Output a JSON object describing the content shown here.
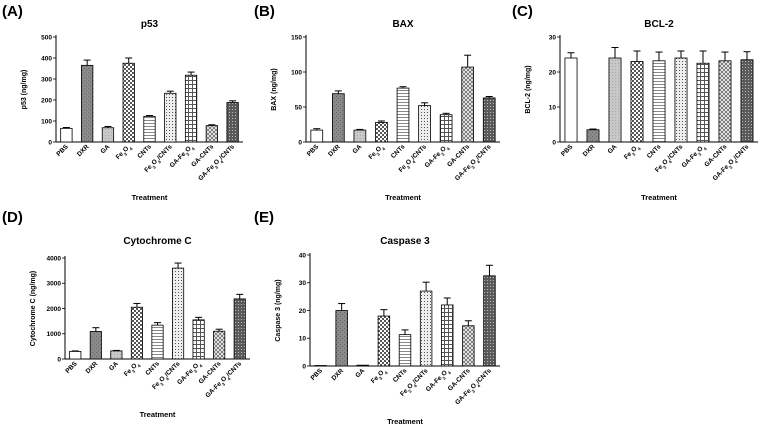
{
  "patterns": [
    "white",
    "gray",
    "lightgray",
    "checker",
    "lines",
    "dots",
    "grid",
    "diamond",
    "dense",
    "cross"
  ],
  "chart_data": [
    {
      "type": "bar",
      "panel": "(A)",
      "title": "p53",
      "ylabel": "p53 (ng/mg)",
      "xlabel": "Treatment",
      "ylim": [
        0,
        500
      ],
      "yticks": [
        0,
        100,
        200,
        300,
        400,
        500
      ],
      "categories": [
        "PBS",
        "DXR",
        "GA",
        "Fe3O4",
        "CNTs",
        "Fe3O4/CNTs",
        "GA-Fe3O4",
        "GA-CNTs",
        "GA-Fe3O4/CNTs"
      ],
      "category_labels": [
        [
          {
            "t": "PBS"
          }
        ],
        [
          {
            "t": "DXR"
          }
        ],
        [
          {
            "t": "GA"
          }
        ],
        [
          {
            "t": "Fe"
          },
          {
            "t": "3",
            "sub": true
          },
          {
            "t": "O"
          },
          {
            "t": "4",
            "sub": true
          }
        ],
        [
          {
            "t": "CNTs"
          }
        ],
        [
          {
            "t": "Fe"
          },
          {
            "t": "3",
            "sub": true
          },
          {
            "t": "O"
          },
          {
            "t": "4",
            "sub": true
          },
          {
            "t": "/CNTs"
          }
        ],
        [
          {
            "t": "GA-Fe"
          },
          {
            "t": "3",
            "sub": true
          },
          {
            "t": "O"
          },
          {
            "t": "4",
            "sub": true
          }
        ],
        [
          {
            "t": "GA-CNTs"
          }
        ],
        [
          {
            "t": "GA-Fe"
          },
          {
            "t": "3",
            "sub": true
          },
          {
            "t": "O"
          },
          {
            "t": "4",
            "sub": true
          },
          {
            "t": "/CNTs"
          }
        ]
      ],
      "values": [
        65,
        365,
        68,
        375,
        122,
        232,
        318,
        78,
        188
      ],
      "errors": [
        4,
        25,
        6,
        25,
        4,
        10,
        15,
        4,
        8
      ]
    },
    {
      "type": "bar",
      "panel": "(B)",
      "title": "BAX",
      "ylabel": "BAX (ng/mg)",
      "xlabel": "Treatment",
      "ylim": [
        0,
        150
      ],
      "yticks": [
        0,
        50,
        100,
        150
      ],
      "categories": [
        "PBS",
        "DXR",
        "GA",
        "Fe3O4",
        "CNTs",
        "Fe3O4/CNTs",
        "GA-Fe3O4",
        "GA-CNTs",
        "GA-Fe3O4/CNTs"
      ],
      "category_labels": [
        [
          {
            "t": "PBS"
          }
        ],
        [
          {
            "t": "DXR"
          }
        ],
        [
          {
            "t": "GA"
          }
        ],
        [
          {
            "t": "Fe"
          },
          {
            "t": "3",
            "sub": true
          },
          {
            "t": "O"
          },
          {
            "t": "4",
            "sub": true
          }
        ],
        [
          {
            "t": "CNTs"
          }
        ],
        [
          {
            "t": "Fe"
          },
          {
            "t": "3",
            "sub": true
          },
          {
            "t": "O"
          },
          {
            "t": "4",
            "sub": true
          },
          {
            "t": "/CNTs"
          }
        ],
        [
          {
            "t": "GA-Fe"
          },
          {
            "t": "3",
            "sub": true
          },
          {
            "t": "O"
          },
          {
            "t": "4",
            "sub": true
          }
        ],
        [
          {
            "t": "GA-CNTs"
          }
        ],
        [
          {
            "t": "GA-Fe"
          },
          {
            "t": "3",
            "sub": true
          },
          {
            "t": "O"
          },
          {
            "t": "4",
            "sub": true
          },
          {
            "t": "/CNTs"
          }
        ]
      ],
      "values": [
        17,
        69,
        17,
        28,
        77,
        52,
        39,
        107,
        63
      ],
      "errors": [
        2,
        4,
        1,
        2,
        2,
        4,
        2,
        17,
        2
      ]
    },
    {
      "type": "bar",
      "panel": "(C)",
      "title": "BCL-2",
      "ylabel": "BCL-2 (ng/mg)",
      "xlabel": "Treatment",
      "ylim": [
        0,
        30
      ],
      "yticks": [
        0,
        10,
        20,
        30
      ],
      "categories": [
        "PBS",
        "DXR",
        "GA",
        "Fe3O4",
        "CNTs",
        "Fe3O4/CNTs",
        "GA-Fe3O4",
        "GA-CNTs",
        "GA-Fe3O4/CNTs"
      ],
      "category_labels": [
        [
          {
            "t": "PBS"
          }
        ],
        [
          {
            "t": "DXR"
          }
        ],
        [
          {
            "t": "GA"
          }
        ],
        [
          {
            "t": "Fe"
          },
          {
            "t": "3",
            "sub": true
          },
          {
            "t": "O"
          },
          {
            "t": "4",
            "sub": true
          }
        ],
        [
          {
            "t": "CNTs"
          }
        ],
        [
          {
            "t": "Fe"
          },
          {
            "t": "3",
            "sub": true
          },
          {
            "t": "O"
          },
          {
            "t": "4",
            "sub": true
          },
          {
            "t": "/CNTs"
          }
        ],
        [
          {
            "t": "GA-Fe"
          },
          {
            "t": "3",
            "sub": true
          },
          {
            "t": "O"
          },
          {
            "t": "4",
            "sub": true
          }
        ],
        [
          {
            "t": "GA-CNTs"
          }
        ],
        [
          {
            "t": "GA-Fe"
          },
          {
            "t": "3",
            "sub": true
          },
          {
            "t": "O"
          },
          {
            "t": "4",
            "sub": true
          },
          {
            "t": "/CNTs"
          }
        ]
      ],
      "values": [
        24,
        3.5,
        24,
        23,
        23.2,
        24,
        22.5,
        23.2,
        23.5
      ],
      "errors": [
        1.5,
        0.2,
        3,
        3,
        2.5,
        2,
        3.5,
        2.5,
        2.3
      ]
    },
    {
      "type": "bar",
      "panel": "(D)",
      "title": "Cytochrome C",
      "ylabel": "Cytochrome C (ng/mg)",
      "xlabel": "Treatment",
      "ylim": [
        0,
        4000
      ],
      "yticks": [
        0,
        1000,
        2000,
        3000,
        4000
      ],
      "categories": [
        "PBS",
        "DXR",
        "GA",
        "Fe3O4",
        "CNTs",
        "Fe3O4/CNTs",
        "GA-Fe3O4",
        "GA-CNTs",
        "GA-Fe3O4/CNTs"
      ],
      "category_labels": [
        [
          {
            "t": "PBS"
          }
        ],
        [
          {
            "t": "DXR"
          }
        ],
        [
          {
            "t": "GA"
          }
        ],
        [
          {
            "t": "Fe"
          },
          {
            "t": "3",
            "sub": true
          },
          {
            "t": "O"
          },
          {
            "t": "4",
            "sub": true
          }
        ],
        [
          {
            "t": "CNTs"
          }
        ],
        [
          {
            "t": "Fe"
          },
          {
            "t": "3",
            "sub": true
          },
          {
            "t": "O"
          },
          {
            "t": "4",
            "sub": true
          },
          {
            "t": "/CNTs"
          }
        ],
        [
          {
            "t": "GA-Fe"
          },
          {
            "t": "3",
            "sub": true
          },
          {
            "t": "O"
          },
          {
            "t": "4",
            "sub": true
          }
        ],
        [
          {
            "t": "GA-CNTs"
          }
        ],
        [
          {
            "t": "GA-Fe"
          },
          {
            "t": "3",
            "sub": true
          },
          {
            "t": "O"
          },
          {
            "t": "4",
            "sub": true
          },
          {
            "t": "/CNTs"
          }
        ]
      ],
      "values": [
        300,
        1090,
        320,
        2050,
        1340,
        3600,
        1550,
        1100,
        2380
      ],
      "errors": [
        20,
        150,
        20,
        150,
        100,
        200,
        100,
        80,
        180
      ]
    },
    {
      "type": "bar",
      "panel": "(E)",
      "title": "Caspase 3",
      "ylabel": "Caspase 3 (ng/mg)",
      "xlabel": "Treatment",
      "ylim": [
        0,
        40
      ],
      "yticks": [
        0,
        10,
        20,
        30,
        40
      ],
      "categories": [
        "PBS",
        "DXR",
        "GA",
        "Fe3O4",
        "CNTs",
        "Fe3O4/CNTs",
        "GA-Fe3O4",
        "GA-CNTs",
        "GA-Fe3O4/CNTs"
      ],
      "category_labels": [
        [
          {
            "t": "PBS"
          }
        ],
        [
          {
            "t": "DXR"
          }
        ],
        [
          {
            "t": "GA"
          }
        ],
        [
          {
            "t": "Fe"
          },
          {
            "t": "3",
            "sub": true
          },
          {
            "t": "O"
          },
          {
            "t": "4",
            "sub": true
          }
        ],
        [
          {
            "t": "CNTs"
          }
        ],
        [
          {
            "t": "Fe"
          },
          {
            "t": "3",
            "sub": true
          },
          {
            "t": "O"
          },
          {
            "t": "4",
            "sub": true
          },
          {
            "t": "/CNTs"
          }
        ],
        [
          {
            "t": "GA-Fe"
          },
          {
            "t": "3",
            "sub": true
          },
          {
            "t": "O"
          },
          {
            "t": "4",
            "sub": true
          }
        ],
        [
          {
            "t": "GA-CNTs"
          }
        ],
        [
          {
            "t": "GA-Fe"
          },
          {
            "t": "3",
            "sub": true
          },
          {
            "t": "O"
          },
          {
            "t": "4",
            "sub": true
          },
          {
            "t": "/CNTs"
          }
        ]
      ],
      "values": [
        0.1,
        20,
        0.3,
        18,
        11.3,
        27,
        22,
        14.5,
        32.5
      ],
      "errors": [
        0,
        2.5,
        0,
        2.3,
        1.7,
        3.2,
        2.5,
        1.8,
        3.8
      ]
    }
  ]
}
